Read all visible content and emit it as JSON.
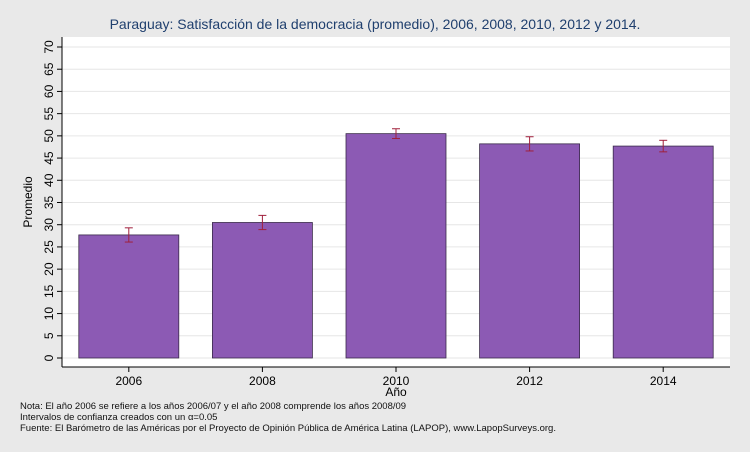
{
  "chart_data": {
    "type": "bar",
    "title": "Paraguay: Satisfacción de la democracia (promedio), 2006, 2008, 2010, 2012 y 2014.",
    "xlabel": "Año",
    "ylabel": "Promedio",
    "categories": [
      "2006",
      "2008",
      "2010",
      "2012",
      "2014"
    ],
    "values": [
      27.7,
      30.5,
      50.5,
      48.2,
      47.7
    ],
    "ci_low": [
      26.1,
      28.9,
      49.4,
      46.6,
      46.4
    ],
    "ci_high": [
      29.3,
      32.1,
      51.6,
      49.8,
      49.0
    ],
    "ylim": [
      0,
      70
    ],
    "yticks": [
      0,
      5,
      10,
      15,
      20,
      25,
      30,
      35,
      40,
      45,
      50,
      55,
      60,
      65,
      70
    ],
    "grid": true,
    "bar_color": "#8c5ab4",
    "error_color": "#a0203c"
  },
  "notes": {
    "line1": "Nota: El año 2006 se refiere a los años 2006/07 y el año 2008 comprende los años 2008/09",
    "line2": "Intervalos de confianza creados con un α=0.05",
    "line3": "Fuente: El Barómetro de las Américas por el Proyecto de Opinión Pública de América Latina (LAPOP), www.LapopSurveys.org."
  }
}
